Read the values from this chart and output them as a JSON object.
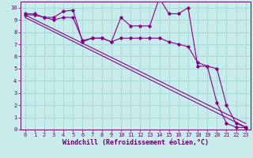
{
  "title": "",
  "xlabel": "Windchill (Refroidissement éolien,°C)",
  "ylabel": "",
  "background_color": "#c8ecec",
  "grid_color": "#a8d8d8",
  "line_color": "#880088",
  "xlim": [
    -0.5,
    23.5
  ],
  "ylim": [
    0,
    10.5
  ],
  "xticks": [
    0,
    1,
    2,
    3,
    4,
    5,
    6,
    7,
    8,
    9,
    10,
    11,
    12,
    13,
    14,
    15,
    16,
    17,
    18,
    19,
    20,
    21,
    22,
    23
  ],
  "yticks": [
    0,
    1,
    2,
    3,
    4,
    5,
    6,
    7,
    8,
    9,
    10
  ],
  "line1_x": [
    0,
    1,
    2,
    3,
    4,
    5,
    6,
    7,
    8,
    9,
    10,
    11,
    12,
    13,
    14,
    15,
    16,
    17,
    18,
    19,
    20,
    21,
    22,
    23
  ],
  "line1_y": [
    9.5,
    9.5,
    9.2,
    9.2,
    9.7,
    9.8,
    7.2,
    7.5,
    7.5,
    7.2,
    9.2,
    8.5,
    8.5,
    8.5,
    10.8,
    9.5,
    9.5,
    10.0,
    5.2,
    5.2,
    2.2,
    0.5,
    0.2,
    0.15
  ],
  "line2_x": [
    0,
    1,
    2,
    3,
    4,
    5,
    6,
    7,
    8,
    9,
    10,
    11,
    12,
    13,
    14,
    15,
    16,
    17,
    18,
    19,
    20,
    21,
    22,
    23
  ],
  "line2_y": [
    9.4,
    9.4,
    9.2,
    9.0,
    9.2,
    9.2,
    7.3,
    7.5,
    7.5,
    7.2,
    7.5,
    7.5,
    7.5,
    7.5,
    7.5,
    7.2,
    7.0,
    6.8,
    5.5,
    5.2,
    5.0,
    2.0,
    0.5,
    0.2
  ],
  "line3_x": [
    0,
    23
  ],
  "line3_y": [
    9.4,
    0.5
  ],
  "line4_x": [
    0,
    23
  ],
  "line4_y": [
    9.2,
    0.2
  ],
  "font_color": "#660066",
  "tick_fontsize": 5.0,
  "label_fontsize": 6.0
}
